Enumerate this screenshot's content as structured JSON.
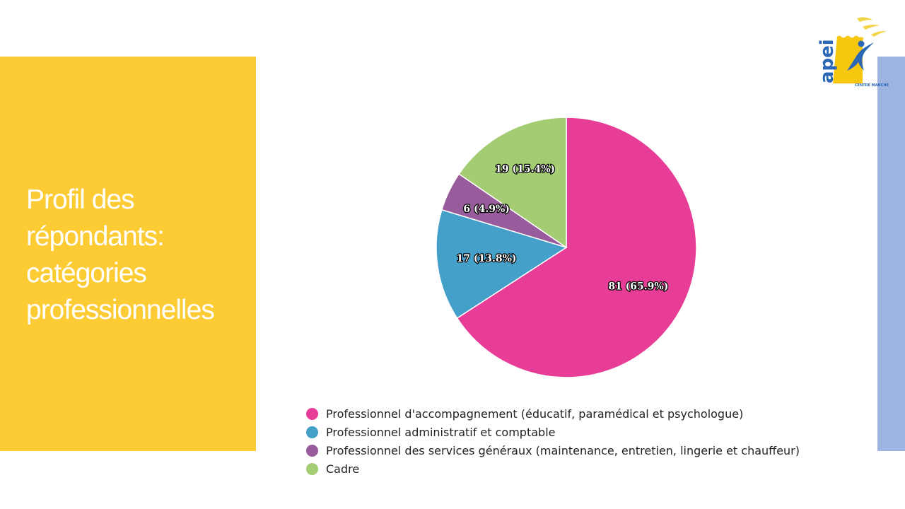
{
  "slide": {
    "title": "Profil des répondants: catégories professionnelles",
    "panel_color": "#FDCB34",
    "bar_color": "#9DB3E0"
  },
  "logo": {
    "text": "apei",
    "subtext": "CENTRE MANCHE",
    "icon": "apei-logo-icon"
  },
  "chart_data": {
    "type": "pie",
    "title": "",
    "categories": [
      "Professionnel d'accompagnement (éducatif, paramédical et psychologue)",
      "Professionnel administratif et comptable",
      "Professionnel des services généraux (maintenance, entretien, lingerie et chauffeur)",
      "Cadre"
    ],
    "values": [
      81,
      17,
      6,
      19
    ],
    "percentages": [
      65.9,
      13.8,
      4.9,
      15.4
    ],
    "labels": [
      "81 (65.9%)",
      "17 (13.8%)",
      "6 (4.9%)",
      "19 (15.4%)"
    ],
    "colors": [
      "#E83D96",
      "#449FC9",
      "#985B9B",
      "#A4CC72"
    ],
    "start": "12 o'clock",
    "direction": "clockwise",
    "legend": "bottom"
  }
}
